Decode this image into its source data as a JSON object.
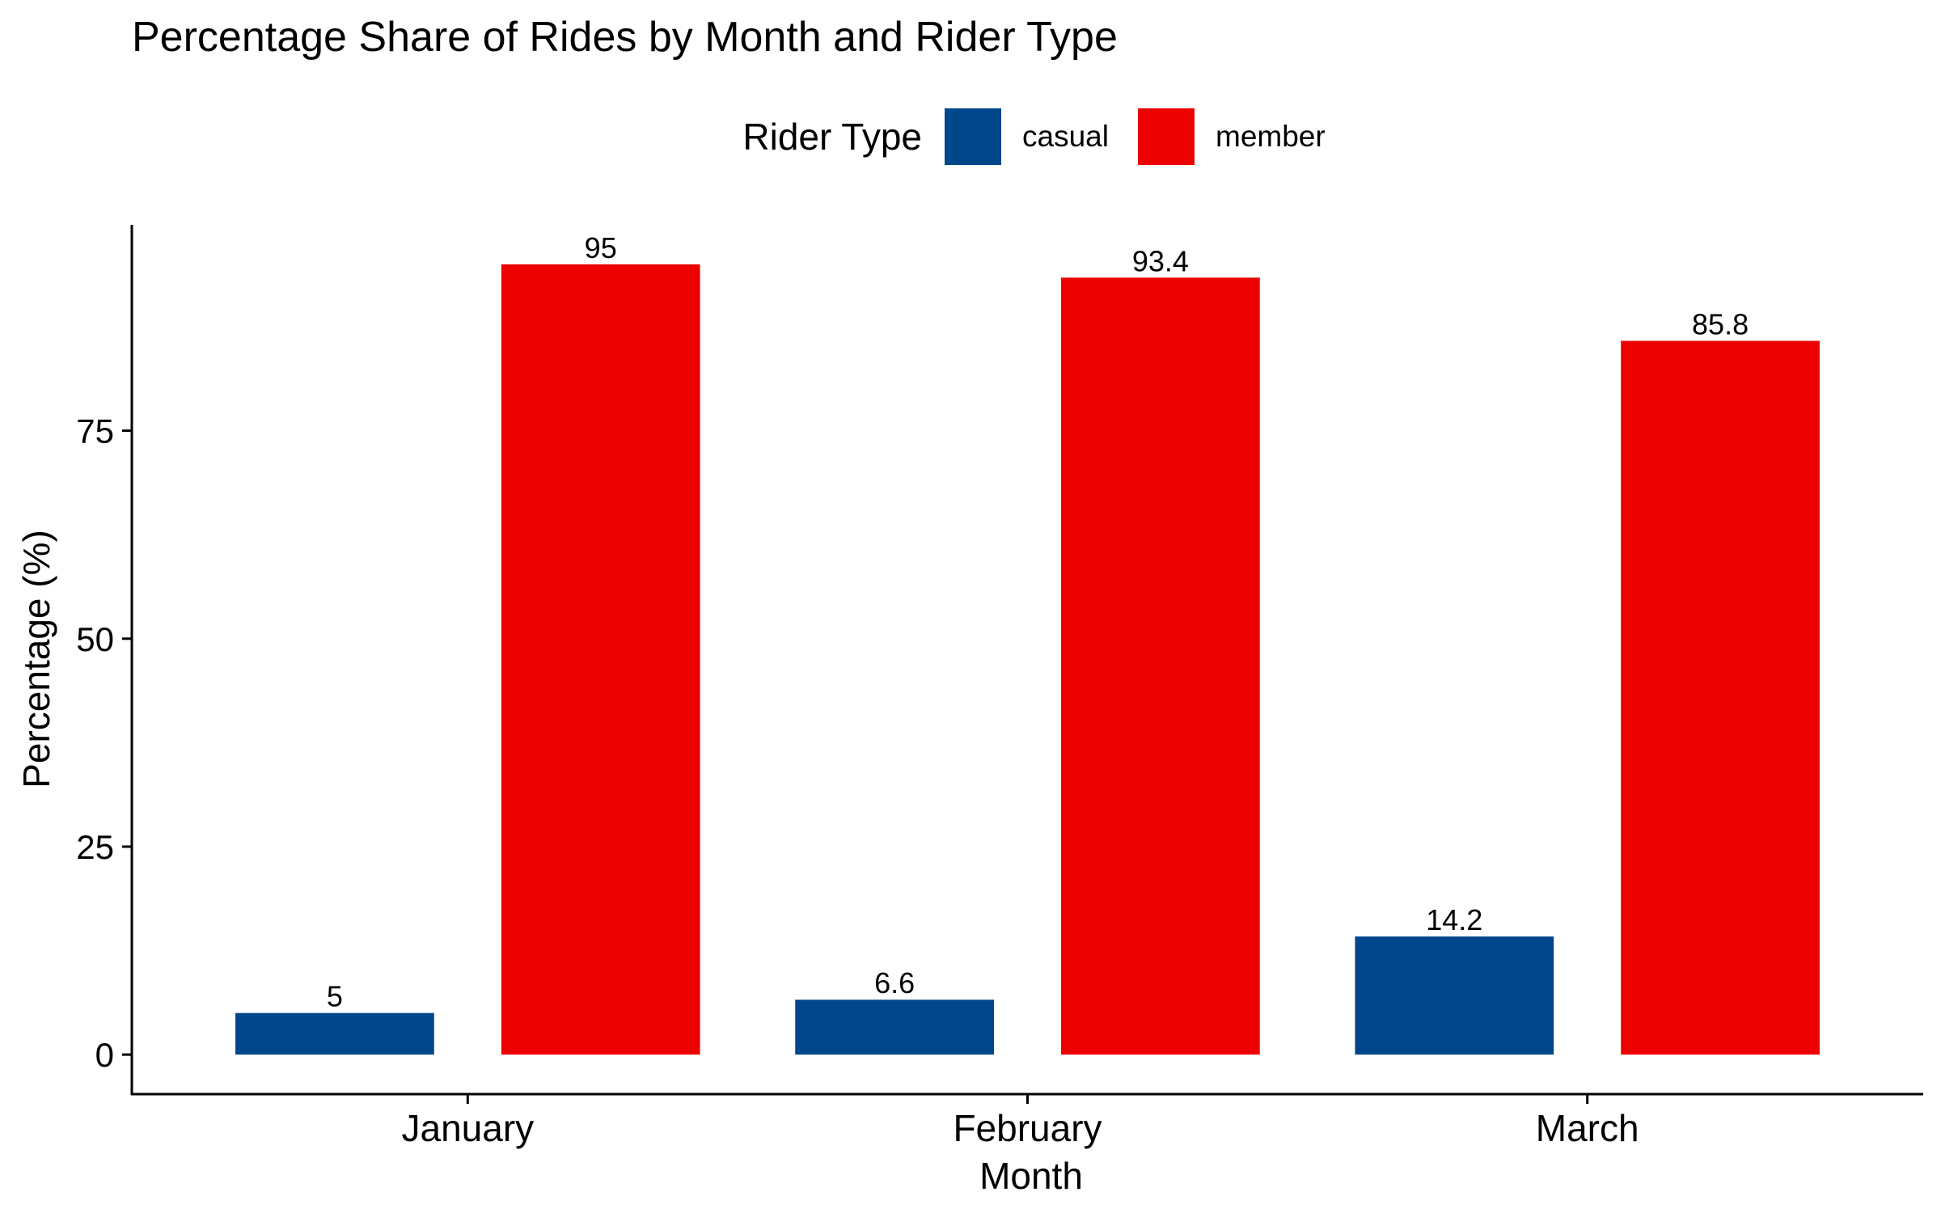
{
  "chart_data": {
    "type": "bar",
    "title": "Percentage Share of Rides by Month and Rider Type",
    "xlabel": "Month",
    "ylabel": "Percentage (%)",
    "categories": [
      "January",
      "February",
      "March"
    ],
    "series": [
      {
        "name": "casual",
        "values": [
          5,
          6.6,
          14.2
        ],
        "color": "#00468B"
      },
      {
        "name": "member",
        "values": [
          95,
          93.4,
          85.8
        ],
        "color": "#ED0000"
      }
    ],
    "data_labels": [
      [
        "5",
        "6.6",
        "14.2"
      ],
      [
        "95",
        "93.4",
        "85.8"
      ]
    ],
    "ylim": [
      -4.75,
      99.75
    ],
    "yticks": [
      0,
      25,
      50,
      75
    ],
    "grid": false,
    "legend": {
      "title": "Rider Type",
      "position": "top"
    }
  }
}
